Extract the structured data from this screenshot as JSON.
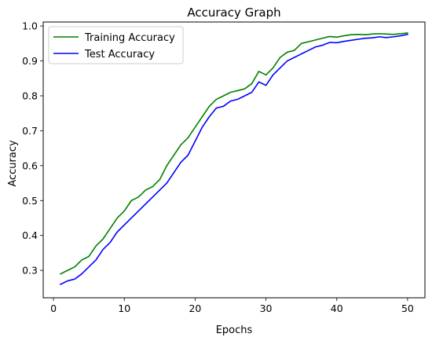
{
  "chart_data": {
    "type": "line",
    "title": "Accuracy Graph",
    "xlabel": "Epochs",
    "ylabel": "Accuracy",
    "xlim": [
      -1.45,
      52.45
    ],
    "ylim": [
      0.2215,
      1.0115
    ],
    "xticks": [
      0,
      10,
      20,
      30,
      40,
      50
    ],
    "yticks": [
      0.3,
      0.4,
      0.5,
      0.6,
      0.7,
      0.8,
      0.9,
      1.0
    ],
    "grid": false,
    "legend_position": "upper left",
    "x": [
      1,
      2,
      3,
      4,
      5,
      6,
      7,
      8,
      9,
      10,
      11,
      12,
      13,
      14,
      15,
      16,
      17,
      18,
      19,
      20,
      21,
      22,
      23,
      24,
      25,
      26,
      27,
      28,
      29,
      30,
      31,
      32,
      33,
      34,
      35,
      36,
      37,
      38,
      39,
      40,
      41,
      42,
      43,
      44,
      45,
      46,
      47,
      48,
      49,
      50
    ],
    "series": [
      {
        "name": "Training Accuracy",
        "color": "#008000",
        "values": [
          0.29,
          0.3,
          0.31,
          0.33,
          0.34,
          0.37,
          0.39,
          0.42,
          0.45,
          0.47,
          0.5,
          0.51,
          0.53,
          0.54,
          0.56,
          0.6,
          0.63,
          0.66,
          0.68,
          0.71,
          0.74,
          0.77,
          0.79,
          0.8,
          0.81,
          0.815,
          0.82,
          0.835,
          0.87,
          0.86,
          0.88,
          0.91,
          0.925,
          0.93,
          0.95,
          0.955,
          0.96,
          0.965,
          0.97,
          0.968,
          0.972,
          0.975,
          0.976,
          0.975,
          0.977,
          0.978,
          0.977,
          0.976,
          0.978,
          0.98
        ]
      },
      {
        "name": "Test Accuracy",
        "color": "#0000ff",
        "values": [
          0.26,
          0.27,
          0.275,
          0.29,
          0.31,
          0.33,
          0.36,
          0.38,
          0.41,
          0.43,
          0.45,
          0.47,
          0.49,
          0.51,
          0.53,
          0.55,
          0.58,
          0.61,
          0.63,
          0.67,
          0.71,
          0.74,
          0.765,
          0.77,
          0.785,
          0.79,
          0.8,
          0.81,
          0.84,
          0.83,
          0.86,
          0.88,
          0.9,
          0.91,
          0.92,
          0.93,
          0.94,
          0.945,
          0.953,
          0.952,
          0.956,
          0.959,
          0.962,
          0.965,
          0.966,
          0.969,
          0.967,
          0.969,
          0.972,
          0.976
        ]
      }
    ]
  }
}
